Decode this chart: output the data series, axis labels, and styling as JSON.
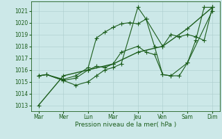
{
  "xlabel": "Pression niveau de la mer( hPa )",
  "bg_color": "#cce8e8",
  "grid_color": "#aacccc",
  "line_color": "#1a5c1a",
  "ylim": [
    1012.5,
    1021.8
  ],
  "yticks": [
    1013,
    1014,
    1015,
    1016,
    1017,
    1018,
    1019,
    1020,
    1021
  ],
  "xtick_labels": [
    "Mar",
    "Mer",
    "Lun",
    "Mar",
    "Jeu",
    "Ven",
    "Sam",
    "Dim"
  ],
  "xtick_positions": [
    0,
    1,
    2,
    3,
    4,
    5,
    6,
    7
  ],
  "xlim": [
    -0.3,
    7.3
  ],
  "line1_x": [
    0,
    0.33,
    1,
    1.5,
    2,
    2.33,
    2.67,
    3,
    3.33,
    4,
    4.33,
    4.67,
    5,
    5.33,
    5.67,
    6,
    6.33,
    6.67,
    7
  ],
  "line1_y": [
    1015.5,
    1015.6,
    1015.1,
    1014.7,
    1015.0,
    1015.5,
    1016.0,
    1016.2,
    1016.5,
    1021.3,
    1020.3,
    1018.0,
    1015.6,
    1015.5,
    1015.5,
    1016.6,
    1018.5,
    1021.3,
    1021.3
  ],
  "line2_x": [
    0,
    0.33,
    1,
    1.5,
    2,
    2.33,
    2.67,
    3,
    3.33,
    4,
    4.33,
    4.67,
    5,
    5.33,
    6,
    7
  ],
  "line2_y": [
    1015.5,
    1015.6,
    1015.1,
    1015.3,
    1016.0,
    1016.3,
    1016.2,
    1016.5,
    1017.5,
    1018.0,
    1017.5,
    1017.3,
    1015.6,
    1015.5,
    1016.6,
    1021.0
  ],
  "line3_x": [
    0,
    0.33,
    1,
    1.5,
    2,
    2.33,
    2.67,
    3,
    3.33,
    3.67,
    4,
    4.33,
    5,
    5.33,
    5.67,
    6,
    6.33,
    6.67,
    7
  ],
  "line3_y": [
    1015.5,
    1015.6,
    1015.2,
    1015.5,
    1016.2,
    1018.7,
    1019.2,
    1019.6,
    1019.9,
    1020.0,
    1019.9,
    1020.3,
    1018.0,
    1019.0,
    1018.8,
    1019.0,
    1018.8,
    1018.5,
    1021.3
  ],
  "line4_x": [
    0,
    1,
    2,
    3,
    4,
    5,
    6,
    7
  ],
  "line4_y": [
    1013.0,
    1015.5,
    1016.0,
    1016.5,
    1017.5,
    1018.0,
    1019.5,
    1021.3
  ]
}
